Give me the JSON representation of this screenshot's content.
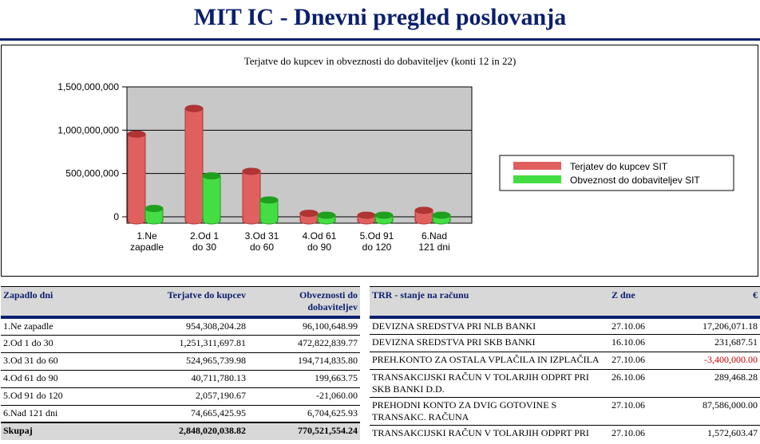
{
  "page": {
    "title": "MIT IC - Dnevni pregled poslovanja"
  },
  "chart_data": {
    "type": "bar",
    "title": "Terjatve do kupcev in obveznosti do dobaviteljev (konti 12 in 22)",
    "categories": [
      [
        "1.Ne",
        "zapadle"
      ],
      [
        "2.Od 1",
        "do 30"
      ],
      [
        "3.Od 31",
        "do 60"
      ],
      [
        "4.Od 61",
        "do 90"
      ],
      [
        "5.Od 91",
        "do 120"
      ],
      [
        "6.Nad",
        "121 dni"
      ]
    ],
    "series": [
      {
        "name": "Terjatev do kupcev SIT",
        "color": "#e06060",
        "values": [
          954308204.28,
          1251311697.81,
          524965739.98,
          40711780.13,
          2057190.67,
          74665425.95
        ]
      },
      {
        "name": "Obveznost do dobaviteljev SIT",
        "color": "#44dd44",
        "values": [
          96100648.99,
          472822839.77,
          194714835.8,
          199663.75,
          -21060.0,
          6704625.93
        ]
      }
    ],
    "y_ticks": [
      "1,500,000,000",
      "1,000,000,000",
      "500,000,000",
      "0"
    ],
    "ylim": [
      0,
      1500000000
    ],
    "grid": true,
    "legend_position": "right"
  },
  "aging_table": {
    "headers": [
      "Zapadlo dni",
      "Terjatve do kupcev",
      "Obveznosti do dobaviteljev"
    ],
    "rows": [
      {
        "label": "1.Ne zapadle",
        "receivables": "954,308,204.28",
        "payables": "96,100,648.99"
      },
      {
        "label": "2.Od 1 do 30",
        "receivables": "1,251,311,697.81",
        "payables": "472,822,839.77"
      },
      {
        "label": "3.Od 31 do 60",
        "receivables": "524,965,739.98",
        "payables": "194,714,835.80"
      },
      {
        "label": "4.Od 61 do 90",
        "receivables": "40,711,780.13",
        "payables": "199,663.75"
      },
      {
        "label": "5.Od 91 do 120",
        "receivables": "2,057,190.67",
        "payables": "-21,060.00"
      },
      {
        "label": "6.Nad 121 dni",
        "receivables": "74,665,425.95",
        "payables": "6,704,625.93"
      }
    ],
    "total": {
      "label": "Skupaj",
      "receivables": "2,848,020,038.82",
      "payables": "770,521,554.24"
    }
  },
  "trr_table": {
    "headers": [
      "TRR - stanje na računu",
      "Z dne",
      "€"
    ],
    "rows": [
      {
        "name": "DEVIZNA SREDSTVA PRI NLB BANKI",
        "date": "27.10.06",
        "amount": "17,206,071.18",
        "negative": false
      },
      {
        "name": "DEVIZNA SREDSTVA PRI SKB BANKI",
        "date": "16.10.06",
        "amount": "231,687.51",
        "negative": false
      },
      {
        "name": "PREH.KONTO ZA OSTALA VPLAČILA IN IZPLAČILA",
        "date": "27.10.06",
        "amount": "-3,400,000.00",
        "negative": true
      },
      {
        "name": "TRANSAKCIJSKI RAČUN V TOLARJIH ODPRT PRI SKB BANKI D.D.",
        "date": "26.10.06",
        "amount": "289,468.28",
        "negative": false
      },
      {
        "name": "PREHODNI KONTO ZA DVIG GOTOVINE S TRANSAKC. RAČUNA",
        "date": "27.10.06",
        "amount": "87,586,000.00",
        "negative": false
      },
      {
        "name": "TRANSAKCIJSKI RAČUN V TOLARJIH ODPRT PRI",
        "date": "27.10.06",
        "amount": "1,572,603.47",
        "negative": false
      }
    ]
  }
}
